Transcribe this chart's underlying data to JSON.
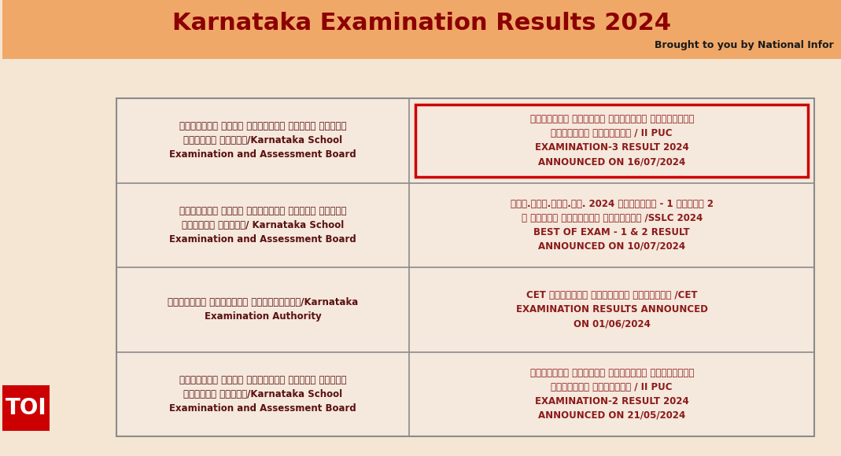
{
  "bg_color": "#f5e6d3",
  "header_bg": "#f0a868",
  "header_text": "Karnataka Examination Results 2024",
  "header_color": "#8b0000",
  "header_fontsize": 22,
  "subheader_text": "Brought to you by National Infor",
  "subheader_color": "#1a1a1a",
  "subheader_fontsize": 9,
  "table_bg": "#f5e8dc",
  "table_border_color": "#8b8b8b",
  "text_color": "#5a1010",
  "link_color": "#8b1a1a",
  "highlight_color": "#cc0000",
  "toi_bg": "#cc0000",
  "toi_text": "TOI",
  "toi_color": "#ffffff",
  "rows": [
    {
      "left": "ಕರ್ನಾಟಕ ಶಾಲಾ ಪರೀಕ್ಷೆ ಮತ್ತು ಮೌಲ್ಯ\nನಿರ್ಣಯ ಮಂಡಲಿ/Karnataka School\nExamination and Assessment Board",
      "right": "ದ್ವಿತೀಯ ಪಿಯುಸಿ ವಾರ್ಷಿಕ ಪರೀಕ್ಷೆಯ\nಫಲಿತಾಂಶ ಪ್ರಕಟನೆ / II PUC\nEXAMINATION-3 RESULT 2024\nANNOUNCED ON 16/07/2024",
      "highlight": true
    },
    {
      "left": "ಕರ್ನಾಟಕ ಶಾಲಾ ಪರೀಕ್ಷೆ ಮತ್ತು ಮೌಲ್ಯ\nನಿರ್ಣಯ ಮಂಡಲಿ/ Karnataka School\nExamination and Assessment Board",
      "right": "ಎಸ್.ಎಸ್.ಎಲ್.ಸಿ. 2024 ಪರೀಕ್ಷೆ - 1 ಮತ್ತು 2\nರ ಉತ್ತಮ ಫಲಿತಾಂಶ ಪ್ರಕಟನೆ /SSLC 2024\nBEST OF EXAM - 1 & 2 RESULT\nANNOUNCED ON 10/07/2024",
      "highlight": false
    },
    {
      "left": "ಕರ್ನಾಟಕ ಪರೀಕ್ಷಾ ಪ್ರಾಧಿಕಾರ/Karnataka\nExamination Authority",
      "right": "CET ಪರೀಕ್ಷೆ ಫಲಿತಾಂಶ ಪ್ರಕಟನೆ /CET\nEXAMINATION RESULTS ANNOUNCED\nON 01/06/2024",
      "highlight": false
    },
    {
      "left": "ಕರ್ನಾಟಕ ಶಾಲಾ ಪರೀಕ್ಷೆ ಮತ್ತು ಮೌಲ್ಯ\nನಿರ್ಣಯ ಮಂಡಲಿ/Karnataka School\nExamination and Assessment Board",
      "right": "ದ್ವಿತೀಯ ಪಿಯುಸಿ ವಾರ್ಷಿಕ ಪರೀಕ್ಷೆಯ\nಫಲಿತಾಂಶ ಪ್ರಕಟನೆ / II PUC\nEXAMINATION-2 RESULT 2024\nANNOUNCED ON 21/05/2024",
      "highlight": false
    }
  ]
}
